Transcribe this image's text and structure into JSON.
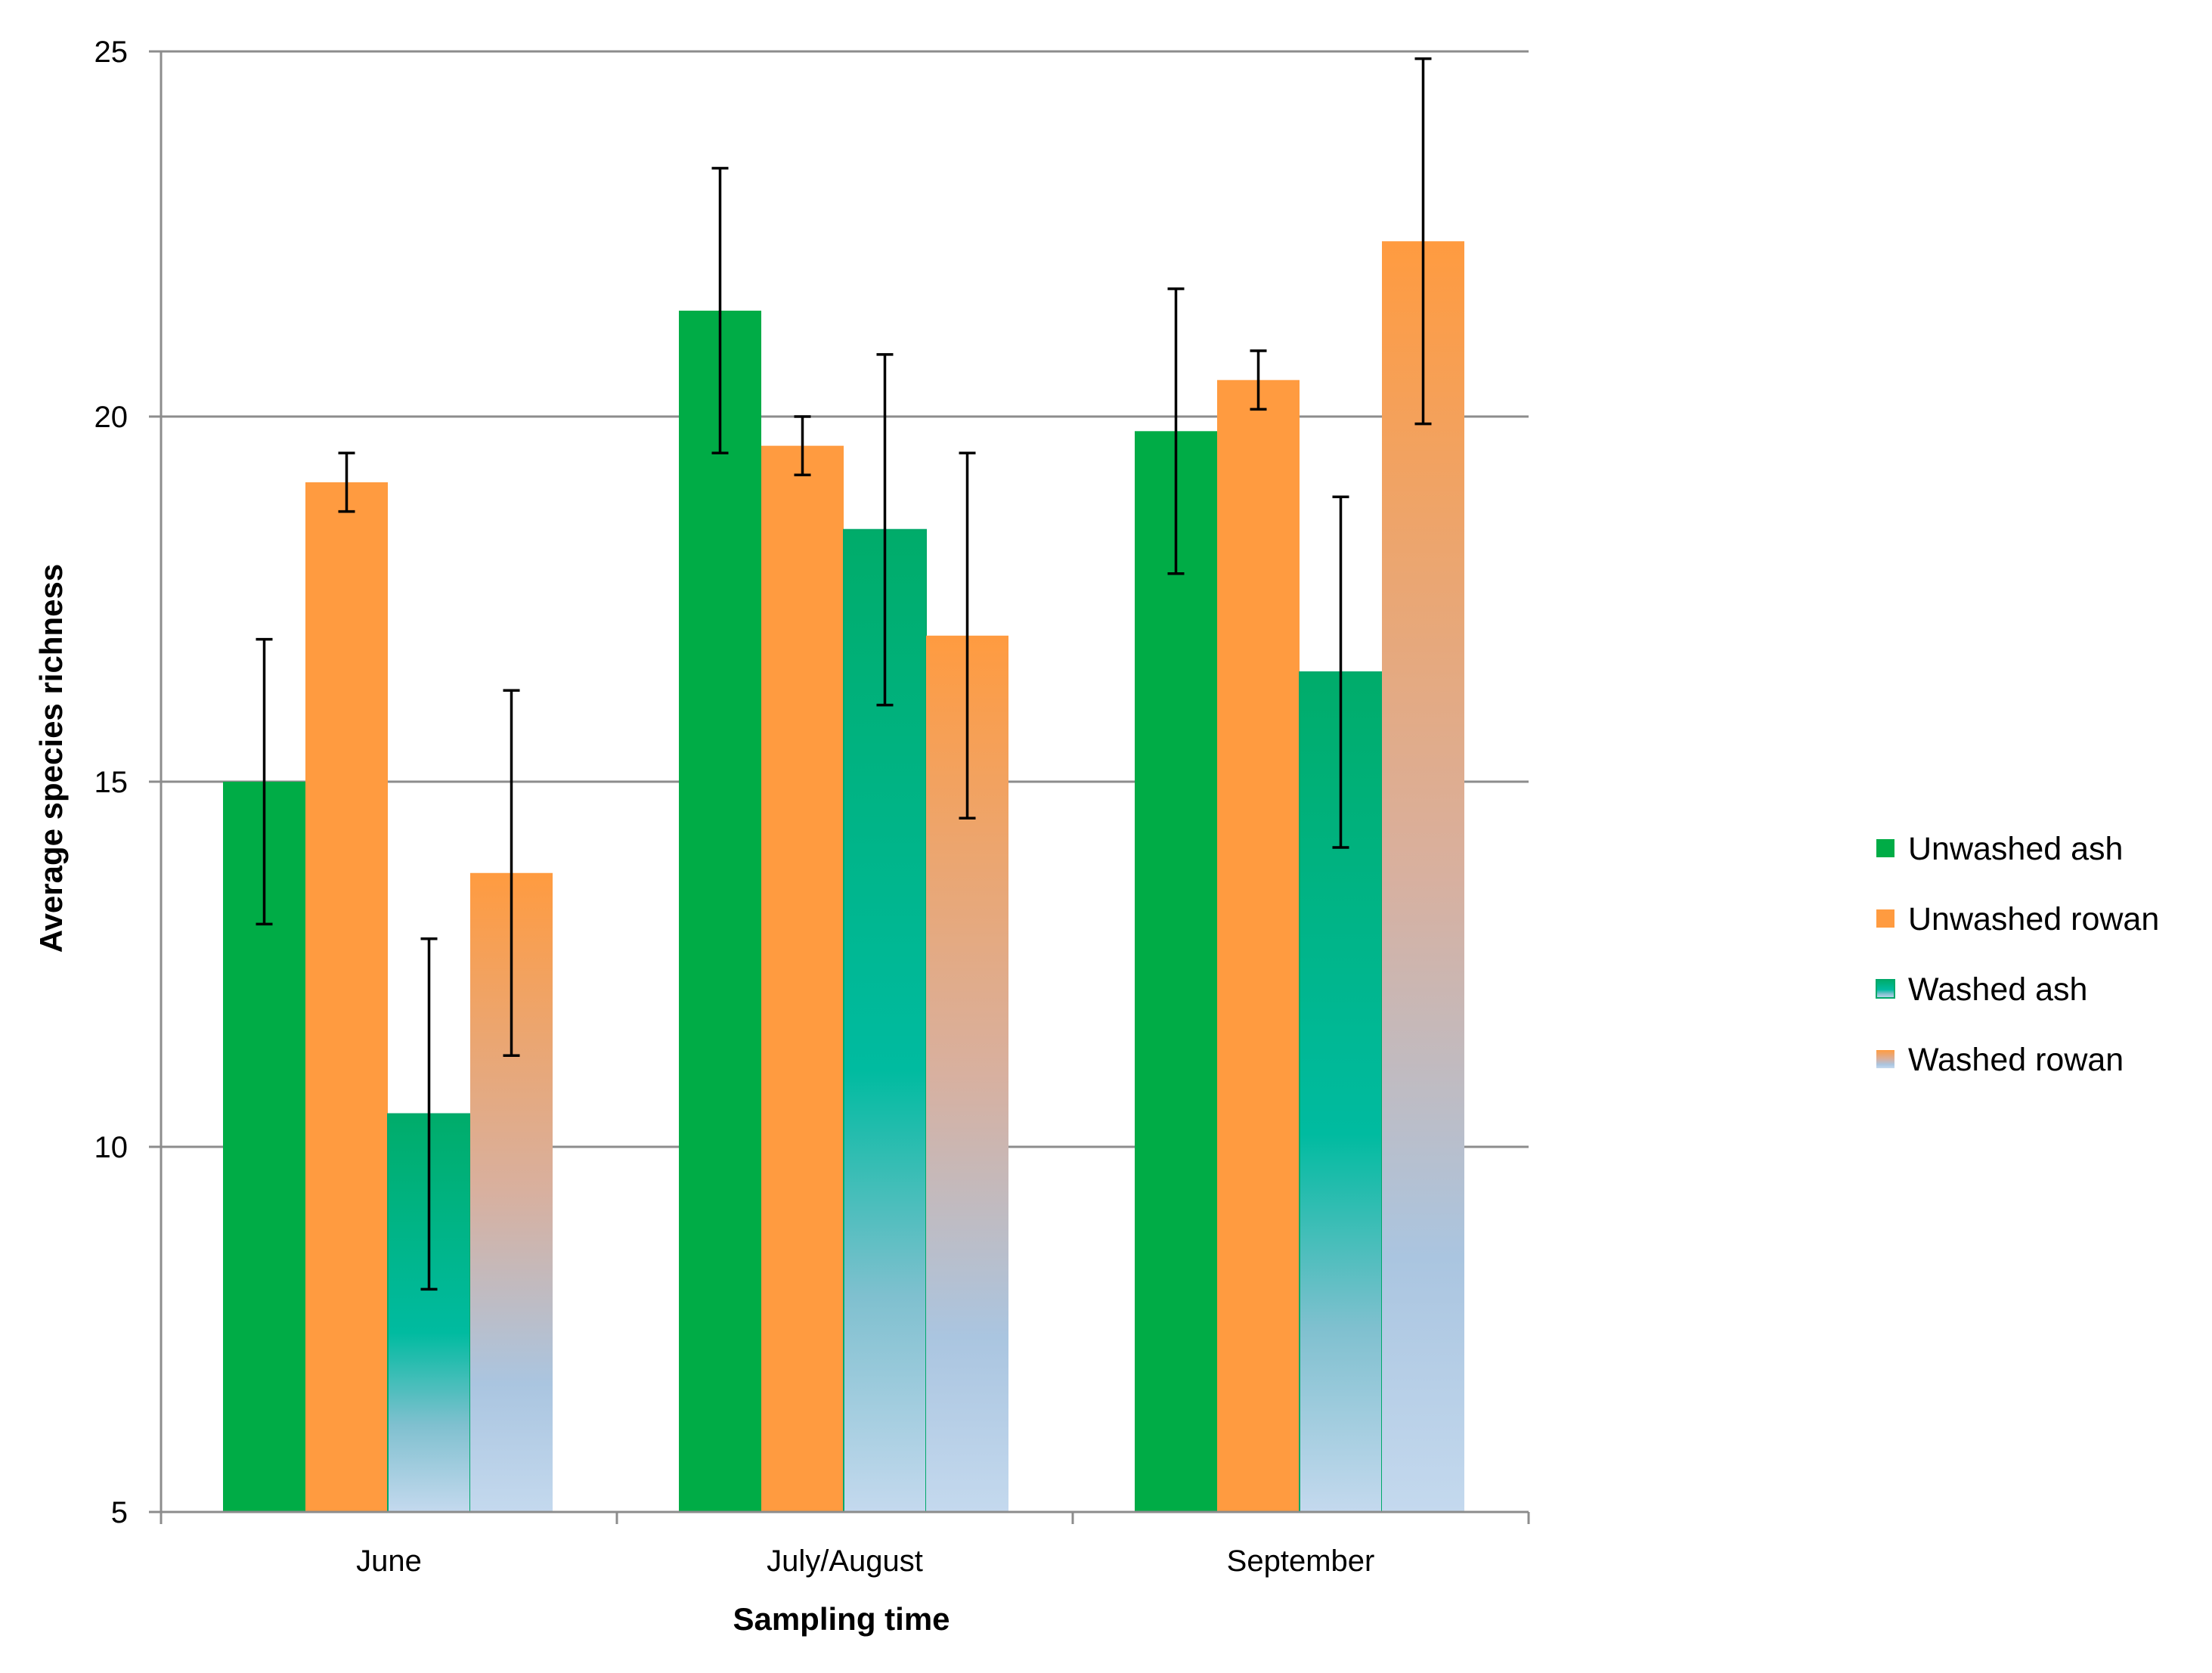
{
  "chart_data": {
    "type": "bar",
    "title": "",
    "xlabel": "Sampling time",
    "ylabel": "Average species richness",
    "ylim": [
      5,
      25
    ],
    "yticks": [
      5,
      10,
      15,
      20,
      25
    ],
    "grid": true,
    "legend_position": "right",
    "categories": [
      "June",
      "July/August",
      "September"
    ],
    "series": [
      {
        "name": "Unwashed ash",
        "fill": "solid",
        "color": "#00AC46",
        "values": [
          15.0,
          21.45,
          19.8
        ],
        "errors": [
          1.95,
          1.95,
          1.95
        ]
      },
      {
        "name": "Unwashed rowan",
        "fill": "solid",
        "color": "#FF9B40",
        "values": [
          19.1,
          19.6,
          20.5
        ],
        "errors": [
          0.4,
          0.4,
          0.4
        ]
      },
      {
        "name": "Washed ash",
        "fill": "gradient",
        "color": "#00BBA0",
        "color_bottom": "#C4D9EE",
        "values": [
          10.45,
          18.45,
          16.5
        ],
        "errors": [
          2.4,
          2.4,
          2.4
        ]
      },
      {
        "name": "Washed rowan",
        "fill": "gradient",
        "color": "#FF9B40",
        "color_bottom": "#C4D9EE",
        "values": [
          13.75,
          17.0,
          22.4
        ],
        "errors": [
          2.5,
          2.5,
          2.5
        ]
      }
    ]
  }
}
